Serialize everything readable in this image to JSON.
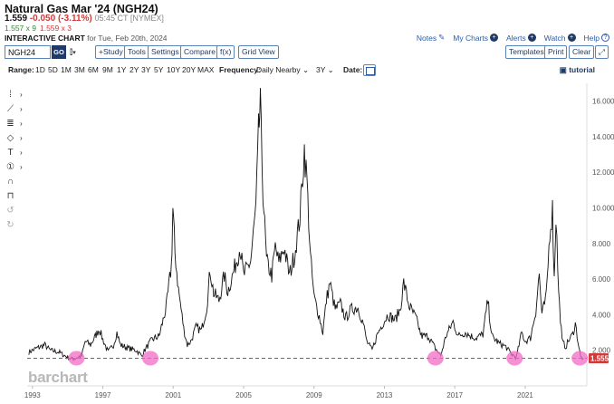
{
  "header": {
    "title": "Natural Gas Mar '24 (NGH24)",
    "last": "1.559",
    "change": "-0.050 (-3.11%)",
    "time": "05:45 CT [NYMEX]",
    "bid": "1.557 x 9",
    "ask": "1.559 x 3",
    "chart_label": "INTERACTIVE CHART",
    "chart_for": "for Tue, Feb 20th, 2024"
  },
  "links": {
    "notes": "Notes",
    "mycharts": "My Charts",
    "alerts": "Alerts",
    "watch": "Watch",
    "help": "Help"
  },
  "toolbar": {
    "symbol_value": "NGH24",
    "go_label": "GO",
    "study": "+Study",
    "tools": "Tools",
    "settings": "Settings",
    "compare": "Compare",
    "fx": "f(x)",
    "gridview": "Grid View",
    "templates": "Templates",
    "print": "Print",
    "clear": "Clear",
    "expand": "⤢"
  },
  "ranges": {
    "label": "Range:",
    "items": [
      "1D",
      "5D",
      "1M",
      "3M",
      "6M",
      "9M",
      "1Y",
      "2Y",
      "3Y",
      "5Y",
      "10Y",
      "20Y",
      "MAX"
    ],
    "frequency_label": "Frequency:",
    "frequency_value": "Daily Nearby",
    "period_value": "3Y",
    "date_label": "Date:",
    "tutorial": "tutorial"
  },
  "brand": "barchart",
  "colors": {
    "accent": "#1f3a66",
    "link": "#2a5ca8",
    "down": "#d23a3a",
    "up": "#2d8a2d",
    "highlight": "#f06bc4"
  },
  "chart_data": {
    "type": "line",
    "x_ticks": [
      "1993",
      "1997",
      "2001",
      "2005",
      "2009",
      "2013",
      "2017",
      "2021"
    ],
    "y_ticks": [
      "2.000",
      "4.000",
      "6.000",
      "8.000",
      "10.000",
      "12.000",
      "14.000",
      "16.000"
    ],
    "ylim": [
      0,
      17
    ],
    "x_range": [
      1992.7,
      2024.4
    ],
    "current_price_label": "1.555",
    "current_price": 1.555,
    "highlights": [
      1995.5,
      1999.7,
      2015.9,
      2020.4,
      2024.1
    ],
    "series": [
      {
        "points": [
          [
            1992.8,
            1.9
          ],
          [
            1993.2,
            2.1
          ],
          [
            1993.7,
            2.3
          ],
          [
            1994.0,
            2.0
          ],
          [
            1994.5,
            1.9
          ],
          [
            1995.0,
            1.6
          ],
          [
            1995.3,
            1.5
          ],
          [
            1995.8,
            1.7
          ],
          [
            1996.0,
            2.5
          ],
          [
            1996.3,
            2.3
          ],
          [
            1996.8,
            3.2
          ],
          [
            1997.0,
            2.6
          ],
          [
            1997.3,
            1.9
          ],
          [
            1997.6,
            2.3
          ],
          [
            1997.8,
            3.0
          ],
          [
            1998.0,
            2.3
          ],
          [
            1998.5,
            2.1
          ],
          [
            1998.9,
            2.0
          ],
          [
            1999.2,
            1.7
          ],
          [
            1999.5,
            2.2
          ],
          [
            1999.8,
            2.6
          ],
          [
            2000.2,
            2.8
          ],
          [
            2000.6,
            4.4
          ],
          [
            2000.9,
            6.8
          ],
          [
            2000.98,
            9.9
          ],
          [
            2001.1,
            7.5
          ],
          [
            2001.3,
            5.4
          ],
          [
            2001.6,
            3.2
          ],
          [
            2001.8,
            2.3
          ],
          [
            2002.0,
            2.5
          ],
          [
            2002.3,
            3.3
          ],
          [
            2002.6,
            3.1
          ],
          [
            2002.9,
            4.4
          ],
          [
            2003.1,
            6.5
          ],
          [
            2003.3,
            5.2
          ],
          [
            2003.6,
            4.8
          ],
          [
            2003.9,
            6.2
          ],
          [
            2004.1,
            5.3
          ],
          [
            2004.4,
            6.3
          ],
          [
            2004.8,
            7.8
          ],
          [
            2005.0,
            6.2
          ],
          [
            2005.4,
            7.0
          ],
          [
            2005.7,
            10.0
          ],
          [
            2005.85,
            14.2
          ],
          [
            2005.95,
            15.6
          ],
          [
            2006.1,
            11.0
          ],
          [
            2006.3,
            7.0
          ],
          [
            2006.6,
            6.2
          ],
          [
            2006.8,
            7.8
          ],
          [
            2007.0,
            6.9
          ],
          [
            2007.3,
            7.8
          ],
          [
            2007.6,
            6.2
          ],
          [
            2007.9,
            7.4
          ],
          [
            2008.2,
            9.5
          ],
          [
            2008.45,
            13.3
          ],
          [
            2008.6,
            11.5
          ],
          [
            2008.8,
            7.2
          ],
          [
            2009.0,
            5.0
          ],
          [
            2009.3,
            3.9
          ],
          [
            2009.5,
            3.0
          ],
          [
            2009.7,
            4.8
          ],
          [
            2009.9,
            5.8
          ],
          [
            2010.2,
            4.3
          ],
          [
            2010.5,
            4.6
          ],
          [
            2010.8,
            3.8
          ],
          [
            2011.1,
            4.3
          ],
          [
            2011.5,
            4.4
          ],
          [
            2011.8,
            3.5
          ],
          [
            2012.0,
            2.5
          ],
          [
            2012.3,
            2.0
          ],
          [
            2012.6,
            2.9
          ],
          [
            2012.9,
            3.5
          ],
          [
            2013.2,
            4.0
          ],
          [
            2013.6,
            3.7
          ],
          [
            2013.9,
            4.3
          ],
          [
            2014.1,
            5.8
          ],
          [
            2014.4,
            4.5
          ],
          [
            2014.8,
            3.8
          ],
          [
            2015.1,
            2.8
          ],
          [
            2015.5,
            2.8
          ],
          [
            2015.9,
            2.1
          ],
          [
            2016.2,
            1.7
          ],
          [
            2016.5,
            2.8
          ],
          [
            2016.9,
            3.6
          ],
          [
            2017.2,
            2.8
          ],
          [
            2017.6,
            3.0
          ],
          [
            2017.9,
            2.8
          ],
          [
            2018.2,
            2.7
          ],
          [
            2018.6,
            2.9
          ],
          [
            2018.88,
            4.8
          ],
          [
            2019.1,
            2.8
          ],
          [
            2019.5,
            2.4
          ],
          [
            2019.9,
            2.2
          ],
          [
            2020.2,
            1.8
          ],
          [
            2020.5,
            1.6
          ],
          [
            2020.8,
            3.0
          ],
          [
            2021.0,
            2.5
          ],
          [
            2021.3,
            2.7
          ],
          [
            2021.6,
            4.2
          ],
          [
            2021.8,
            6.3
          ],
          [
            2021.95,
            4.0
          ],
          [
            2022.2,
            5.0
          ],
          [
            2022.4,
            8.7
          ],
          [
            2022.55,
            9.9
          ],
          [
            2022.65,
            6.0
          ],
          [
            2022.75,
            9.6
          ],
          [
            2022.9,
            5.2
          ],
          [
            2023.1,
            2.5
          ],
          [
            2023.3,
            2.2
          ],
          [
            2023.5,
            2.6
          ],
          [
            2023.7,
            2.9
          ],
          [
            2023.85,
            3.5
          ],
          [
            2024.0,
            2.5
          ],
          [
            2024.15,
            1.6
          ],
          [
            2024.3,
            1.555
          ]
        ]
      }
    ]
  }
}
